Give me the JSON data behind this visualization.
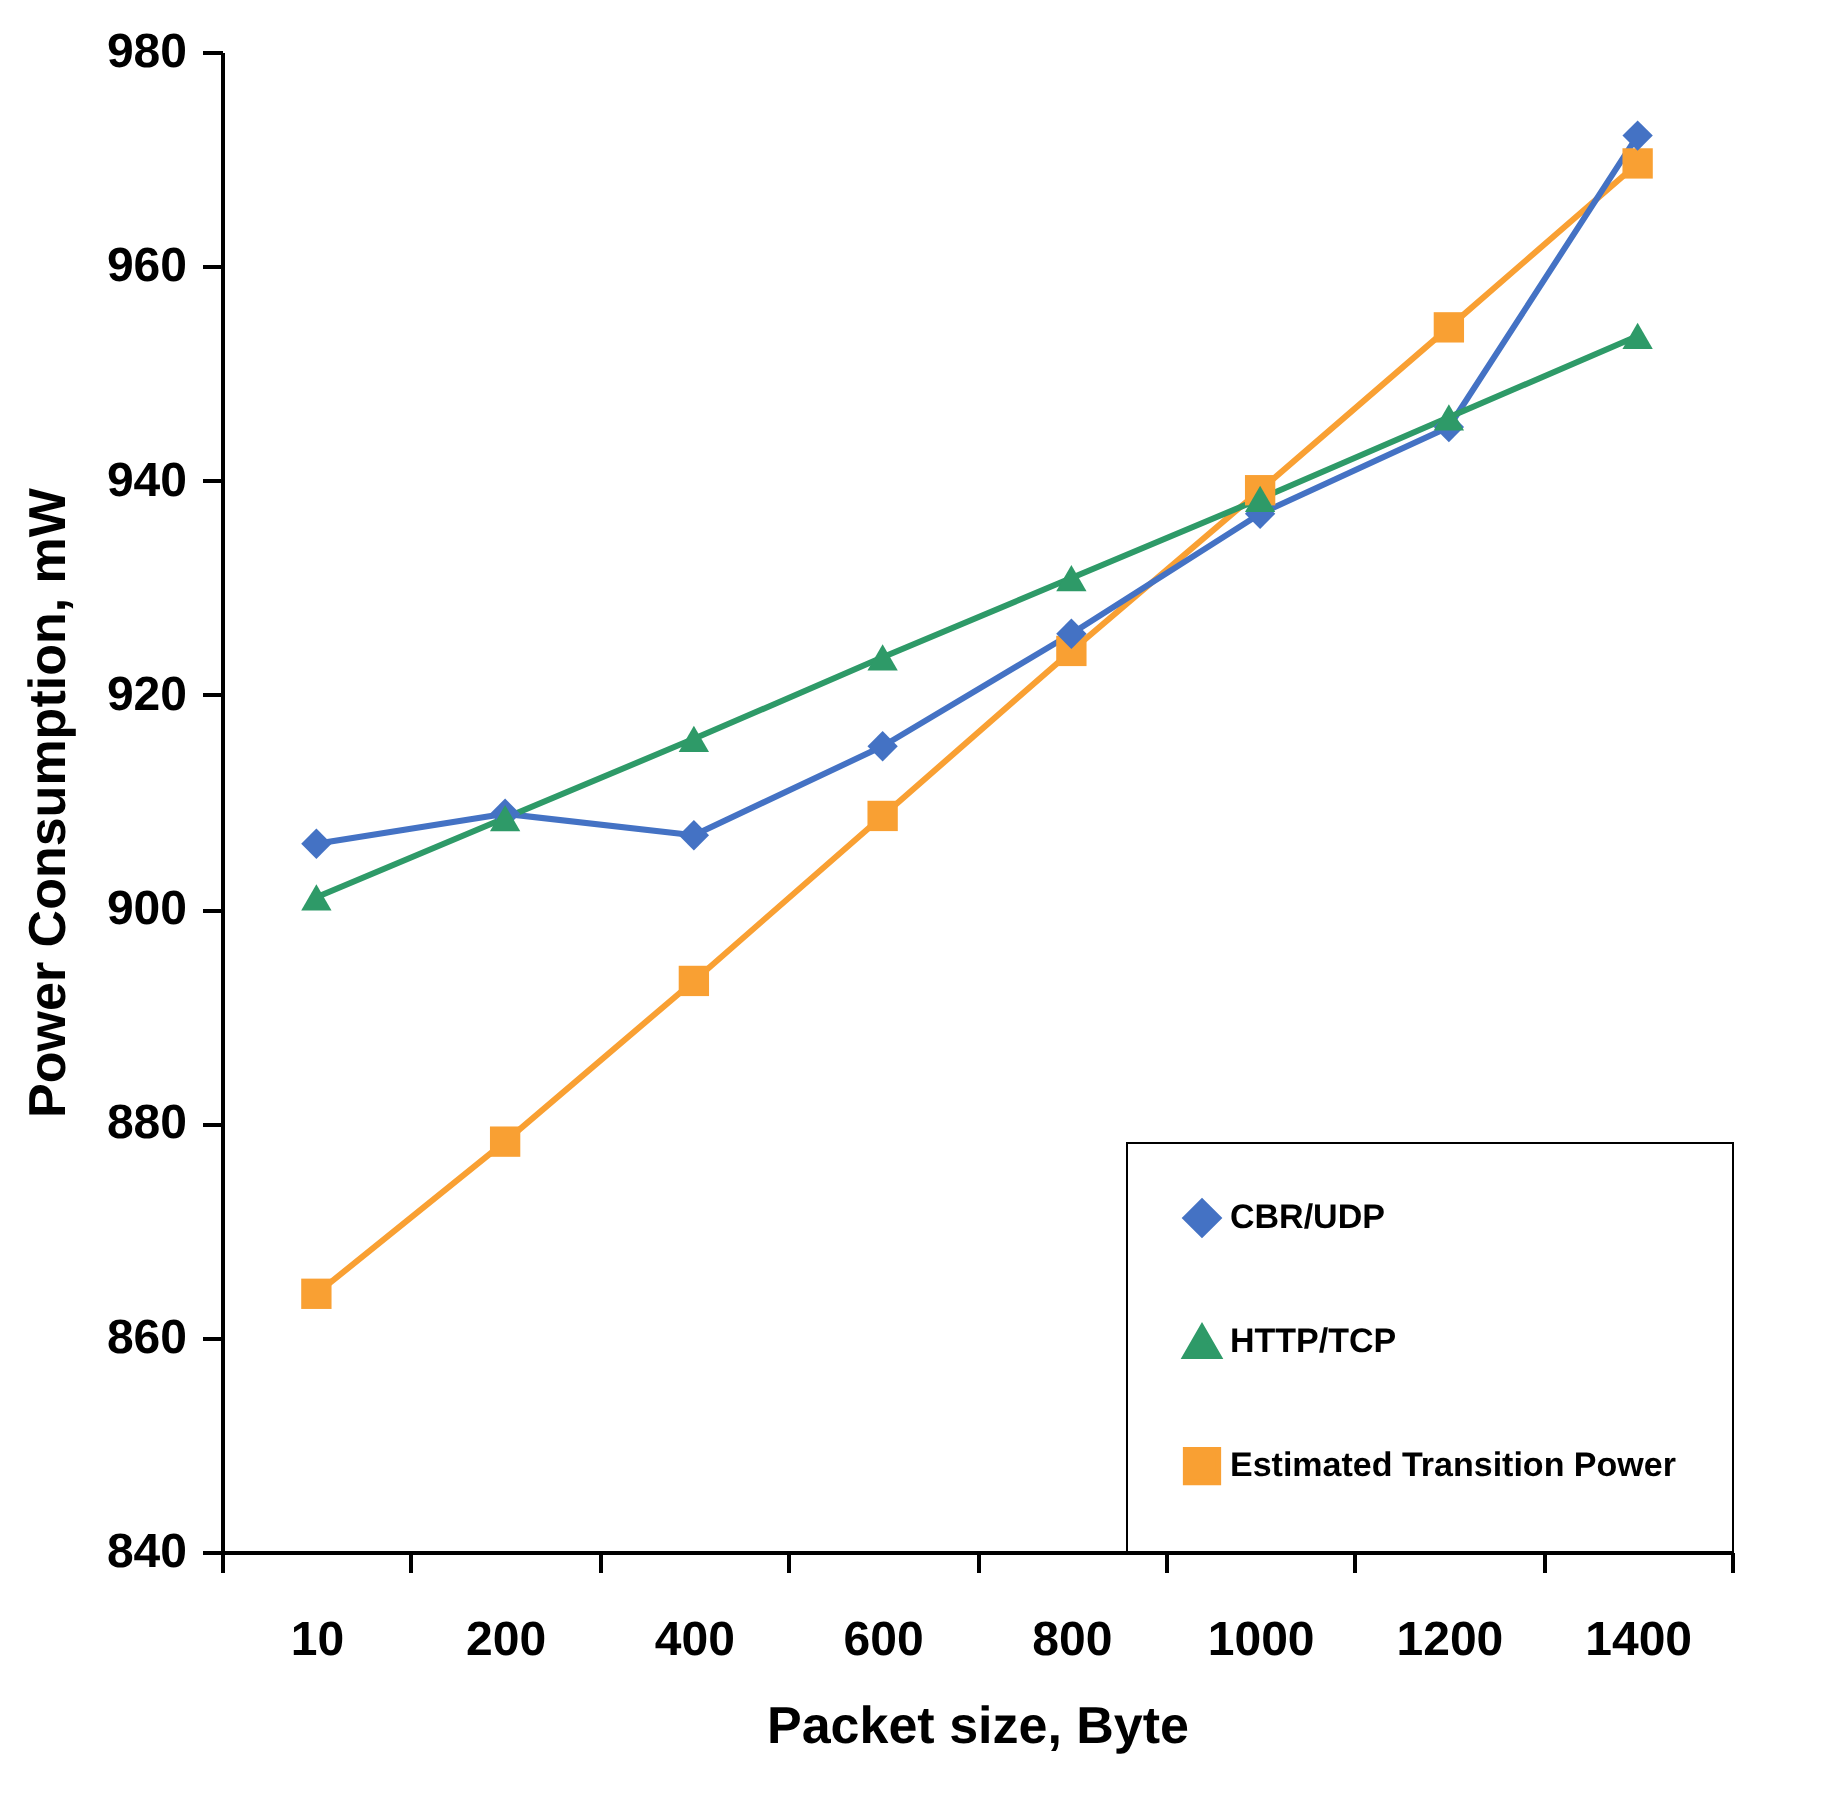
{
  "chart_data": {
    "type": "line",
    "xlabel": "Packet size, Byte",
    "ylabel": "Power Consumption, mW",
    "categories": [
      "10",
      "200",
      "400",
      "600",
      "800",
      "1000",
      "1200",
      "1400"
    ],
    "ylim": [
      840,
      980
    ],
    "yticks": [
      840,
      860,
      880,
      900,
      920,
      940,
      960,
      980
    ],
    "grid": false,
    "legend": "bottom right",
    "line_style": "solid",
    "series": [
      {
        "name": "CBR/UDP",
        "color": "#4472c4",
        "marker": "diamond",
        "values": [
          906.1,
          908.9,
          906.9,
          915.2,
          925.7,
          936.9,
          945,
          972.2
        ]
      },
      {
        "name": "HTTP/TCP",
        "color": "#2e9a68",
        "marker": "triangle",
        "values": [
          901.1,
          908.5,
          915.9,
          923.5,
          930.9,
          938.3,
          945.9,
          953.5
        ]
      },
      {
        "name": "Estimated Transition Power",
        "color": "#f9a033",
        "marker": "square",
        "values": [
          864.1,
          878.3,
          893.3,
          908.7,
          924.1,
          939.1,
          954.3,
          969.6
        ]
      }
    ]
  }
}
